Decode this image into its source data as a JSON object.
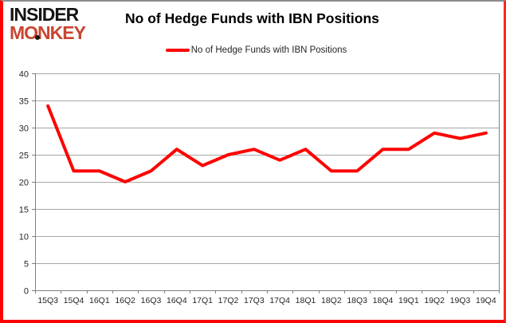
{
  "header": {
    "logo": {
      "line1": "INSIDER",
      "line2": "MONKEY"
    },
    "title": "No of Hedge Funds with IBN Positions"
  },
  "legend": {
    "label": "No of Hedge Funds with IBN Positions",
    "color": "#ff0000"
  },
  "chart_data": {
    "type": "line",
    "title": "No of Hedge Funds with IBN Positions",
    "categories": [
      "15Q3",
      "15Q4",
      "16Q1",
      "16Q2",
      "16Q3",
      "16Q4",
      "17Q1",
      "17Q2",
      "17Q3",
      "17Q4",
      "18Q1",
      "18Q2",
      "18Q3",
      "18Q4",
      "19Q1",
      "19Q2",
      "19Q3",
      "19Q4"
    ],
    "series": [
      {
        "name": "No of Hedge Funds with IBN Positions",
        "color": "#ff0000",
        "values": [
          34,
          22,
          22,
          20,
          22,
          26,
          23,
          25,
          26,
          24,
          26,
          22,
          22,
          26,
          26,
          29,
          28,
          29
        ]
      }
    ],
    "xlabel": "",
    "ylabel": "",
    "ylim": [
      0,
      40
    ],
    "ytick_step": 5,
    "grid": "horizontal",
    "legend_position": "top"
  },
  "colors": {
    "logo_black": "#161413",
    "logo_red": "#c8452f",
    "line_red": "#ff0000",
    "gridline": "#a6a6a6",
    "axis": "#808080",
    "tick_label": "#262626",
    "frame_red": "#fa0400",
    "frame_top_gray": "#8c8c8c"
  }
}
